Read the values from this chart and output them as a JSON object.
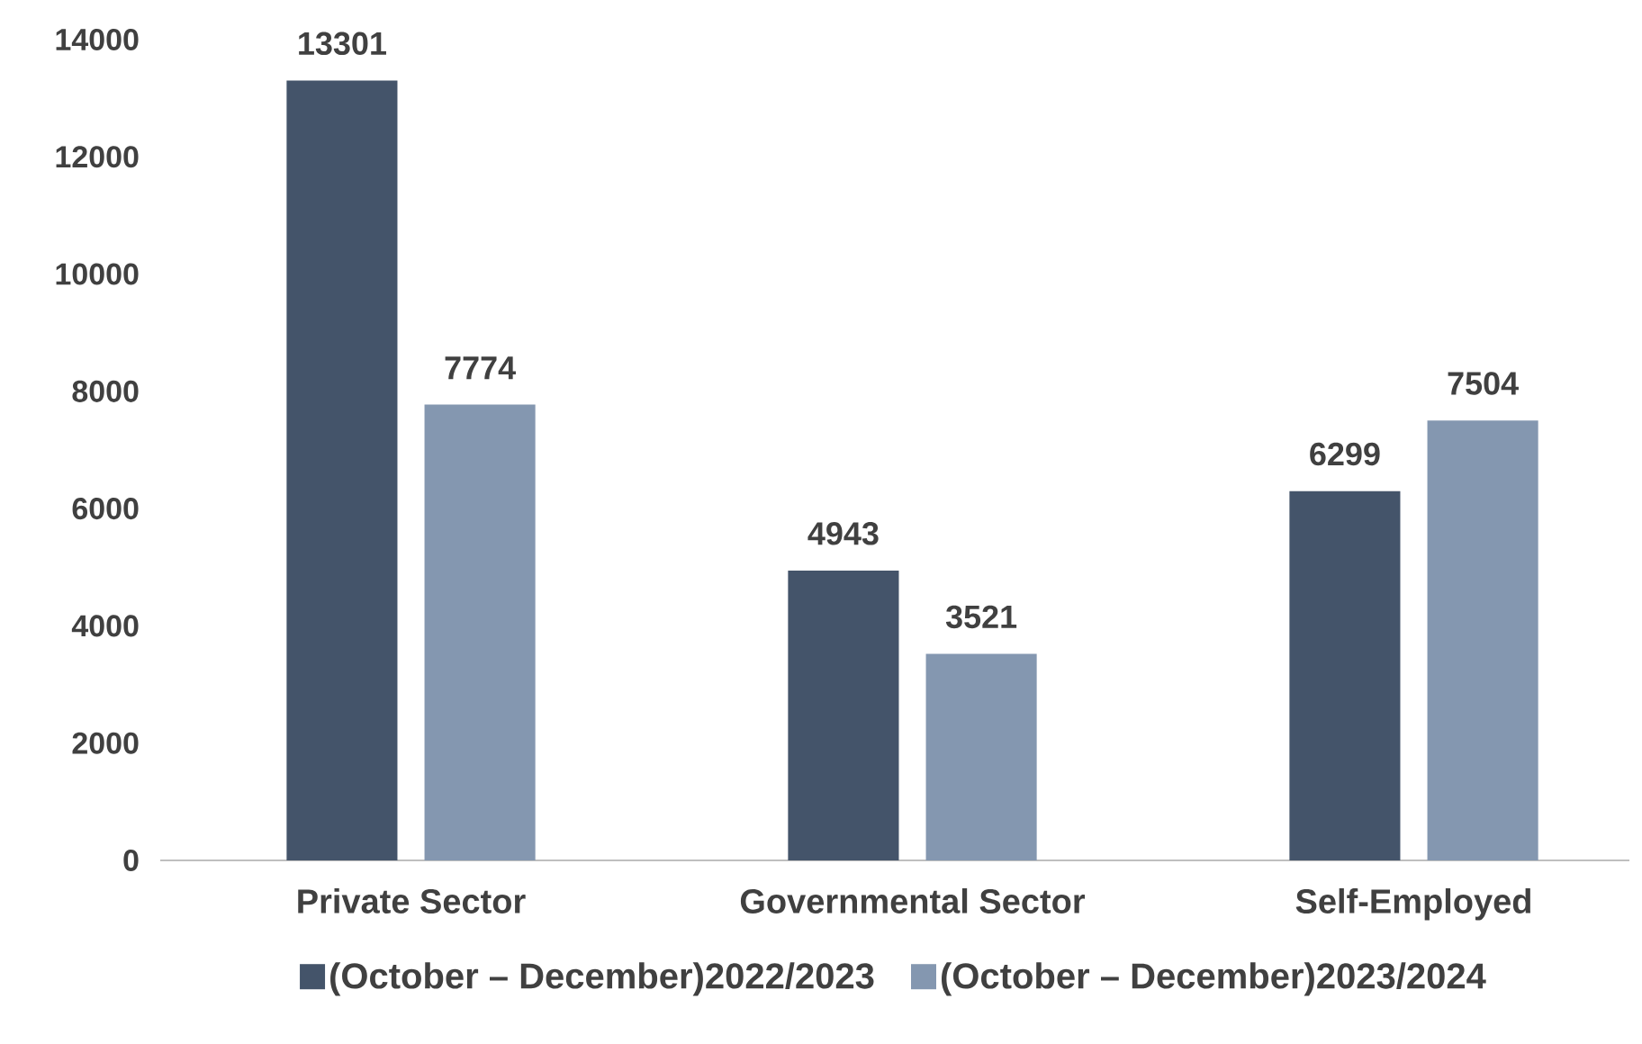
{
  "chart_data": {
    "type": "bar",
    "categories": [
      "Private Sector",
      "Governmental Sector",
      "Self-Employed"
    ],
    "series": [
      {
        "name": "(October – December)2022/2023",
        "color": "#44546a",
        "values": [
          13301,
          4943,
          6299
        ]
      },
      {
        "name": "(October – December)2023/2024",
        "color": "#8497b0",
        "values": [
          7774,
          3521,
          7504
        ]
      }
    ],
    "ylim": [
      0,
      14000
    ],
    "yticks": [
      0,
      2000,
      4000,
      6000,
      8000,
      10000,
      12000,
      14000
    ],
    "grid": false,
    "legend": "bottom",
    "data_labels": true
  }
}
